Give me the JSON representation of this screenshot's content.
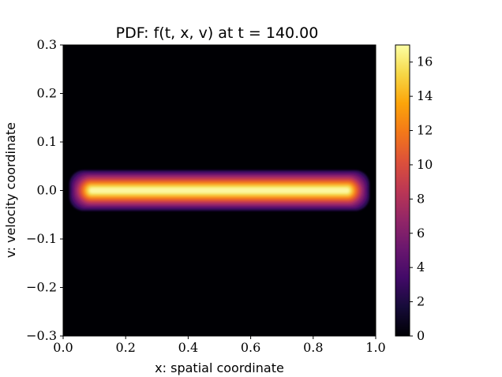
{
  "chart_data": {
    "type": "heatmap",
    "title": "PDF: f(t, x, v) at t = 140.00",
    "xlabel": "x: spatial coordinate",
    "ylabel": "v: velocity coordinate",
    "xlim": [
      0.0,
      1.0
    ],
    "ylim": [
      -0.3,
      0.3
    ],
    "x_ticks": [
      "0.0",
      "0.2",
      "0.4",
      "0.6",
      "0.8",
      "1.0"
    ],
    "y_ticks": [
      "0.3",
      "0.2",
      "0.1",
      "0.0",
      "−0.1",
      "−0.2",
      "−0.3"
    ],
    "colorbar": {
      "colormap": "inferno",
      "range": [
        0,
        17
      ],
      "ticks": [
        "0",
        "2",
        "4",
        "6",
        "8",
        "10",
        "12",
        "14",
        "16"
      ]
    },
    "distribution": {
      "x_range": [
        0.02,
        0.98
      ],
      "v_center": 0.0,
      "v_half_width": 0.04,
      "peak_value": 17,
      "background_color": "#000004"
    }
  }
}
